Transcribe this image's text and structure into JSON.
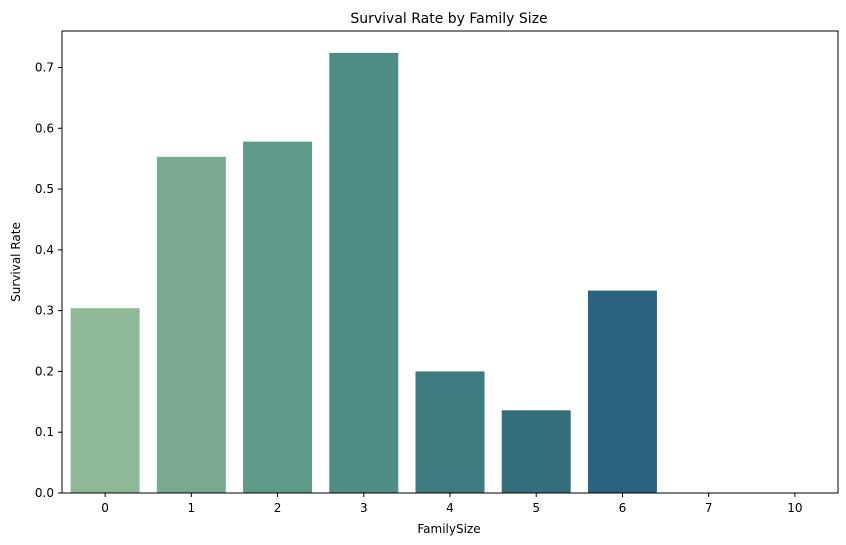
{
  "chart_data": {
    "type": "bar",
    "title": "Survival Rate by Family Size",
    "xlabel": "FamilySize",
    "ylabel": "Survival Rate",
    "categories": [
      "0",
      "1",
      "2",
      "3",
      "4",
      "5",
      "6",
      "7",
      "10"
    ],
    "values": [
      0.304,
      0.553,
      0.578,
      0.724,
      0.2,
      0.136,
      0.333,
      0.0,
      0.0
    ],
    "colors": [
      "#8fb996",
      "#79a98f",
      "#5e9a89",
      "#4e8c86",
      "#3e7b80",
      "#336e7b",
      "#2a6280",
      "#1f5572",
      "#1b4d6b"
    ],
    "ylim": [
      0,
      0.76
    ],
    "yticks": [
      0.0,
      0.1,
      0.2,
      0.3,
      0.4,
      0.5,
      0.6,
      0.7
    ],
    "ytick_labels": [
      "0.0",
      "0.1",
      "0.2",
      "0.3",
      "0.4",
      "0.5",
      "0.6",
      "0.7"
    ],
    "grid": false,
    "legend": "none"
  }
}
